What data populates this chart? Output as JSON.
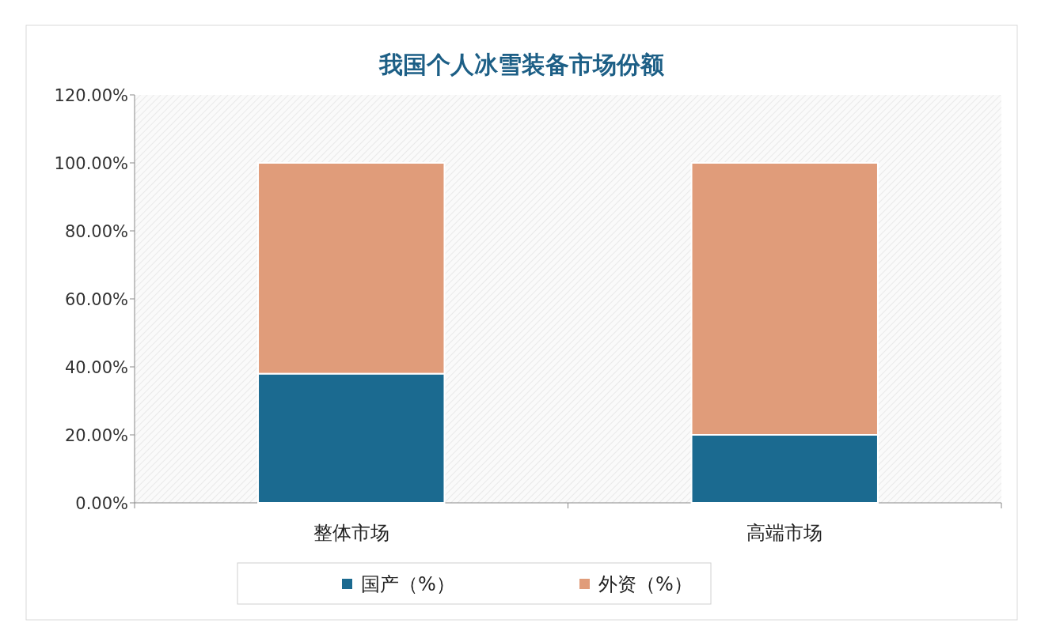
{
  "chart_data": {
    "type": "bar",
    "title": "我国个人冰雪装备市场份额",
    "stacked": true,
    "categories": [
      "整体市场",
      "高端市场"
    ],
    "series": [
      {
        "name": "国产（%）",
        "color": "#1b6a90",
        "values": [
          38,
          20
        ]
      },
      {
        "name": "外资（%）",
        "color": "#e09c7a",
        "values": [
          62,
          80
        ]
      }
    ],
    "ylim": [
      0,
      120
    ],
    "yticks": [
      {
        "value": 0,
        "label": "0.00%"
      },
      {
        "value": 20,
        "label": "20.00%"
      },
      {
        "value": 40,
        "label": "40.00%"
      },
      {
        "value": 60,
        "label": "60.00%"
      },
      {
        "value": 80,
        "label": "80.00%"
      },
      {
        "value": 100,
        "label": "100.00%"
      },
      {
        "value": 120,
        "label": "120.00%"
      }
    ],
    "legend": "bottom"
  }
}
